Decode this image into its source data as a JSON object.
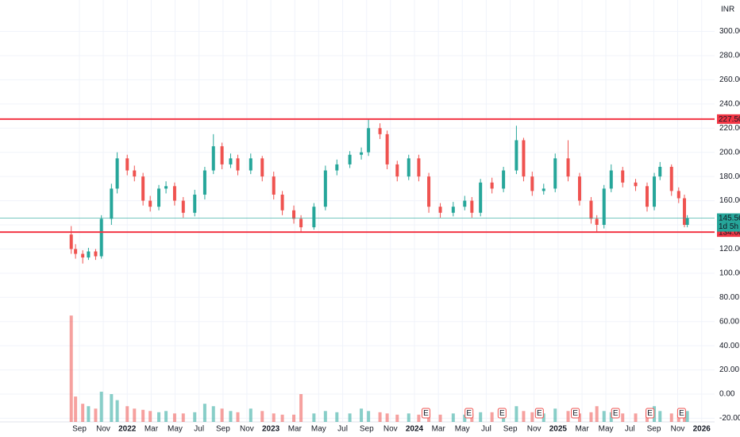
{
  "chart_data": {
    "type": "candlestick",
    "currency": "INR",
    "xlim": [
      2021.114,
      2026.09
    ],
    "xticks": [
      {
        "value": 2021.667,
        "label": "Sep"
      },
      {
        "value": 2021.833,
        "label": "Nov"
      },
      2022,
      {
        "value": 2022.167,
        "label": "Mar"
      },
      {
        "value": 2022.333,
        "label": "May"
      },
      {
        "value": 2022.5,
        "label": "Jul"
      },
      {
        "value": 2022.667,
        "label": "Sep"
      },
      {
        "value": 2022.833,
        "label": "Nov"
      },
      2023,
      {
        "value": 2023.167,
        "label": "Mar"
      },
      {
        "value": 2023.333,
        "label": "May"
      },
      {
        "value": 2023.5,
        "label": "Jul"
      },
      {
        "value": 2023.667,
        "label": "Sep"
      },
      {
        "value": 2023.833,
        "label": "Nov"
      },
      2024,
      {
        "value": 2024.167,
        "label": "Mar"
      },
      {
        "value": 2024.333,
        "label": "May"
      },
      {
        "value": 2024.5,
        "label": "Jul"
      },
      {
        "value": 2024.667,
        "label": "Sep"
      },
      {
        "value": 2024.833,
        "label": "Nov"
      },
      2025,
      {
        "value": 2025.167,
        "label": "Mar"
      },
      {
        "value": 2025.333,
        "label": "May"
      },
      {
        "value": 2025.5,
        "label": "Jul"
      },
      {
        "value": 2025.667,
        "label": "Sep"
      },
      {
        "value": 2025.833,
        "label": "Nov"
      },
      2026
    ],
    "ylim": [
      -23,
      326
    ],
    "yticks": [
      {
        "value": -20,
        "label": "-20.00"
      },
      {
        "value": 0,
        "label": "0.00"
      },
      {
        "value": 20,
        "label": "20.00"
      },
      {
        "value": 40,
        "label": "40.00"
      },
      {
        "value": 60,
        "label": "60.00"
      },
      {
        "value": 80,
        "label": "80.00"
      },
      {
        "value": 100,
        "label": "100.00"
      },
      {
        "value": 120,
        "label": "120.00"
      },
      {
        "value": 140,
        "label": "140.00"
      },
      {
        "value": 160,
        "label": "160.00"
      },
      {
        "value": 180,
        "label": "180.00"
      },
      {
        "value": 200,
        "label": "200.00"
      },
      {
        "value": 220,
        "label": "220.00"
      },
      {
        "value": 240,
        "label": "240.00"
      },
      {
        "value": 260,
        "label": "260.00"
      },
      {
        "value": 280,
        "label": "280.00"
      },
      {
        "value": 300,
        "label": "300.00"
      }
    ],
    "grid": true,
    "up_color": "#26a69a",
    "down_color": "#ef5350",
    "x": [
      2021.61,
      2021.64,
      2021.69,
      2021.73,
      2021.78,
      2021.82,
      2021.89,
      2021.93,
      2022.0,
      2022.05,
      2022.11,
      2022.16,
      2022.22,
      2022.27,
      2022.33,
      2022.39,
      2022.47,
      2022.54,
      2022.6,
      2022.66,
      2022.72,
      2022.77,
      2022.86,
      2022.94,
      2023.02,
      2023.08,
      2023.16,
      2023.21,
      2023.3,
      2023.38,
      2023.46,
      2023.55,
      2023.63,
      2023.68,
      2023.76,
      2023.81,
      2023.88,
      2023.96,
      2024.03,
      2024.1,
      2024.18,
      2024.27,
      2024.35,
      2024.4,
      2024.46,
      2024.54,
      2024.62,
      2024.71,
      2024.76,
      2024.82,
      2024.9,
      2024.98,
      2025.07,
      2025.15,
      2025.23,
      2025.27,
      2025.32,
      2025.37,
      2025.45,
      2025.54,
      2025.62,
      2025.67,
      2025.71,
      2025.79,
      2025.84,
      2025.88,
      2025.9
    ],
    "open": [
      132,
      120,
      116,
      113,
      118,
      114,
      145,
      170,
      195,
      185,
      180,
      160,
      155,
      170,
      172,
      160,
      150,
      165,
      185,
      205,
      190,
      195,
      185,
      195,
      180,
      165,
      152,
      145,
      138,
      155,
      185,
      190,
      198,
      200,
      220,
      215,
      190,
      180,
      195,
      180,
      155,
      150,
      155,
      160,
      150,
      175,
      170,
      185,
      210,
      180,
      168,
      170,
      195,
      180,
      160,
      145,
      140,
      170,
      185,
      175,
      172,
      155,
      180,
      188,
      168,
      162,
      140
    ],
    "high": [
      139,
      124,
      119,
      121,
      120,
      148,
      174,
      200,
      198,
      189,
      183,
      164,
      173,
      176,
      175,
      163,
      169,
      188,
      215,
      208,
      199,
      198,
      199,
      197,
      184,
      168,
      156,
      148,
      158,
      189,
      194,
      201,
      204,
      227.5,
      224,
      218,
      193,
      198,
      198,
      183,
      158,
      159,
      164,
      163,
      178,
      179,
      188,
      222,
      212,
      184,
      174,
      199,
      210,
      183,
      163,
      148,
      173,
      190,
      188,
      178,
      175,
      183,
      192,
      190,
      171,
      165,
      148
    ],
    "low": [
      116,
      112,
      108,
      111,
      111,
      112,
      140,
      166,
      181,
      176,
      156,
      151,
      152,
      166,
      156,
      146,
      147,
      161,
      182,
      186,
      187,
      181,
      182,
      176,
      161,
      148,
      141,
      134,
      136,
      152,
      181,
      187,
      194,
      197,
      211,
      186,
      176,
      177,
      176,
      150,
      146,
      147,
      152,
      146,
      147,
      166,
      167,
      182,
      176,
      164,
      165,
      167,
      176,
      156,
      141,
      134,
      137,
      167,
      171,
      168,
      151,
      152,
      177,
      164,
      158,
      138,
      138
    ],
    "close": [
      120,
      116,
      113,
      118,
      114,
      145,
      170,
      195,
      185,
      180,
      160,
      155,
      170,
      172,
      160,
      150,
      165,
      185,
      205,
      190,
      195,
      185,
      195,
      180,
      165,
      152,
      145,
      138,
      155,
      185,
      190,
      198,
      200,
      220,
      215,
      190,
      180,
      195,
      180,
      155,
      150,
      155,
      160,
      150,
      175,
      170,
      185,
      210,
      180,
      168,
      170,
      195,
      180,
      160,
      145,
      140,
      170,
      185,
      175,
      172,
      155,
      180,
      188,
      168,
      162,
      140,
      145.56
    ],
    "volume": [
      65,
      -2,
      -8,
      -10,
      -12,
      2,
      0,
      -5,
      -10,
      -12,
      -13,
      -14,
      -15,
      -14,
      -16,
      -16,
      -15,
      -8,
      -10,
      -12,
      -14,
      -15,
      -12,
      -14,
      -16,
      -17,
      -17,
      0,
      -16,
      -14,
      -15,
      -16,
      -12,
      -14,
      -15,
      -16,
      -17,
      -16,
      -17,
      -16,
      -17,
      -16,
      -17,
      -16,
      -15,
      -15,
      -12,
      -10,
      -14,
      -15,
      -16,
      -12,
      -14,
      -16,
      -15,
      -10,
      -14,
      -15,
      -16,
      -16,
      -15,
      -10,
      -14,
      -16,
      -17,
      -15,
      -14
    ],
    "levels": [
      {
        "value": 227.5,
        "label": "227.50"
      },
      {
        "value": 134,
        "label": "134.00"
      }
    ],
    "level_color": "#f23645",
    "last_price": {
      "value": 145.56,
      "label": "145.56",
      "countdown": "1d 5h"
    },
    "earnings": {
      "x": [
        2024.08,
        2024.38,
        2024.61,
        2024.87,
        2025.12,
        2025.4,
        2025.64,
        2025.86
      ],
      "label": "E"
    }
  }
}
